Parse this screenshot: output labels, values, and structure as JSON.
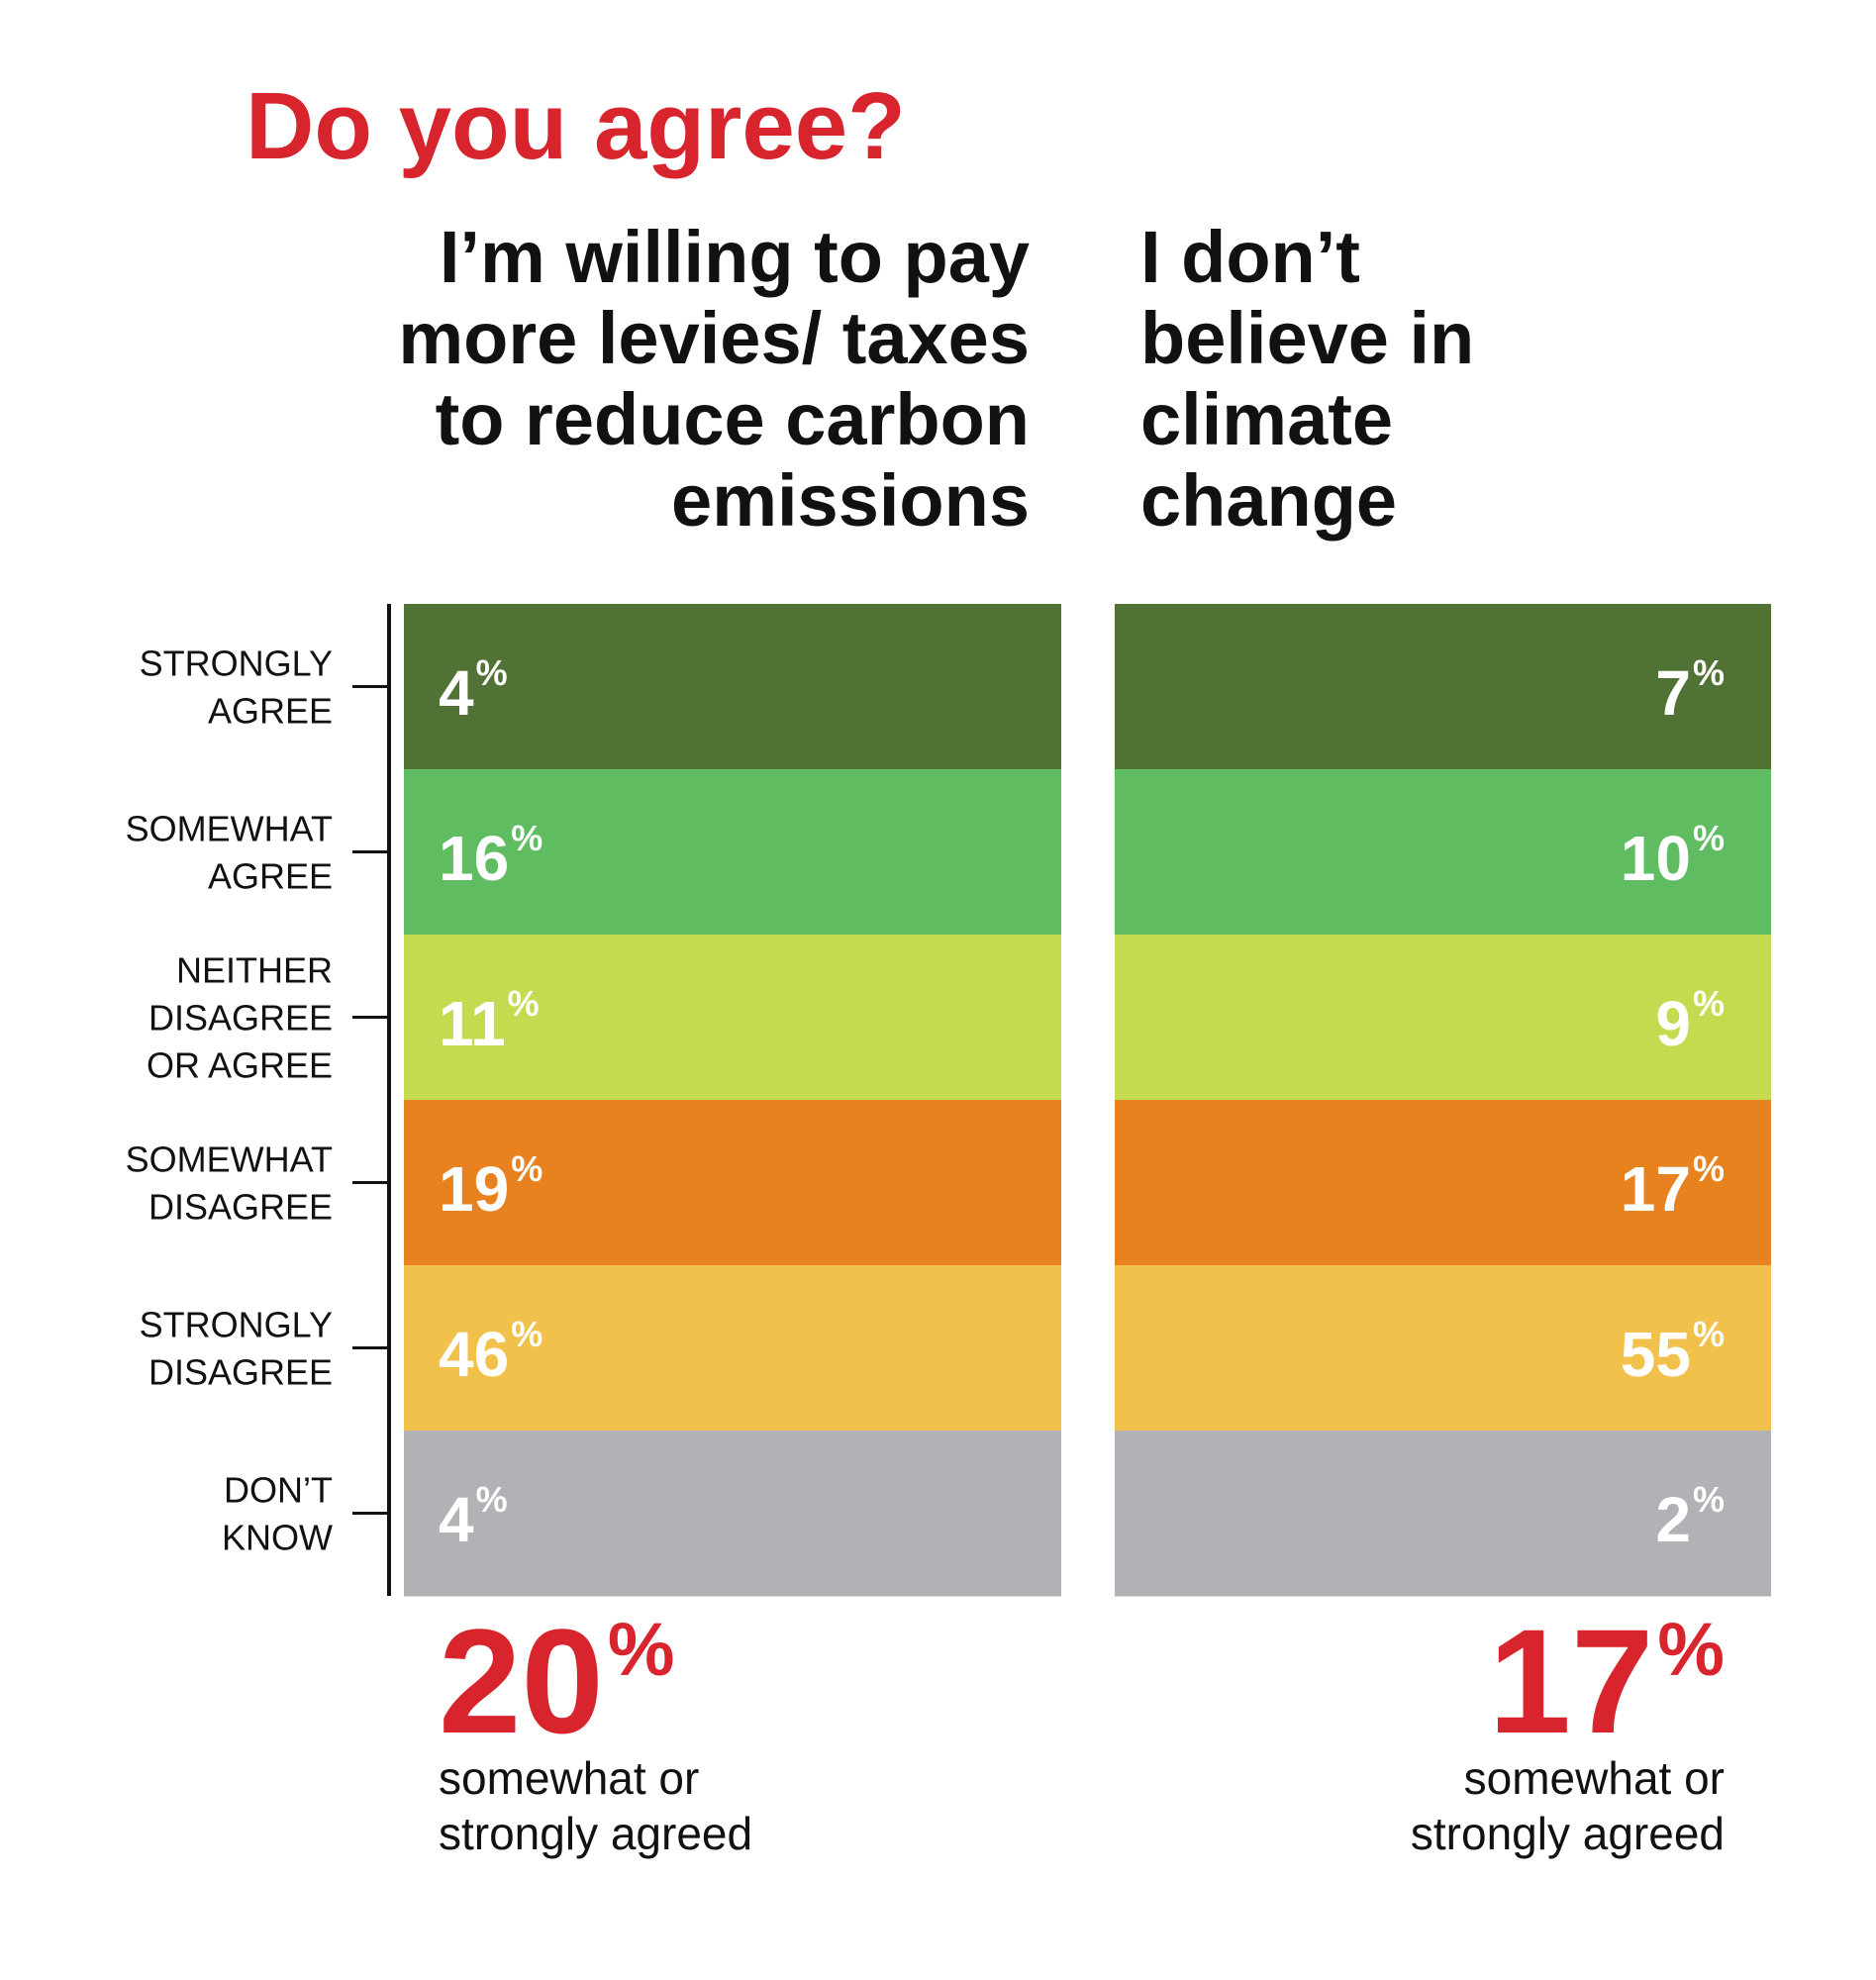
{
  "chart_data": {
    "type": "bar",
    "title": "Do you agree?",
    "categories": [
      "STRONGLY AGREE",
      "SOMEWHAT AGREE",
      "NEITHER DISAGREE OR AGREE",
      "SOMEWHAT DISAGREE",
      "STRONGLY DISAGREE",
      "DON’T KNOW"
    ],
    "category_lines": [
      [
        "STRONGLY",
        "AGREE"
      ],
      [
        "SOMEWHAT",
        "AGREE"
      ],
      [
        "NEITHER",
        "DISAGREE",
        "OR AGREE"
      ],
      [
        "SOMEWHAT",
        "DISAGREE"
      ],
      [
        "STRONGLY",
        "DISAGREE"
      ],
      [
        "DON’T",
        "KNOW"
      ]
    ],
    "colors": [
      "#517235",
      "#5fbc60",
      "#c4db4f",
      "#e7821f",
      "#f1c14b",
      "#b1b2b5"
    ],
    "series": [
      {
        "name": "I’m willing to pay more levies/ taxes to reduce carbon emissions",
        "name_lines": [
          "I’m willing to pay",
          "more levies/ taxes",
          "to reduce carbon",
          "emissions"
        ],
        "values": [
          4,
          16,
          11,
          19,
          46,
          4
        ],
        "total": 20,
        "total_note_lines": [
          "somewhat or",
          "strongly agreed"
        ]
      },
      {
        "name": "I don’t believe in climate change",
        "name_lines": [
          "I don’t",
          "believe in",
          "climate",
          "change"
        ],
        "values": [
          7,
          10,
          9,
          17,
          55,
          2
        ],
        "total": 17,
        "total_note_lines": [
          "somewhat or",
          "strongly agreed"
        ]
      }
    ],
    "unit": "%",
    "grid": false
  }
}
